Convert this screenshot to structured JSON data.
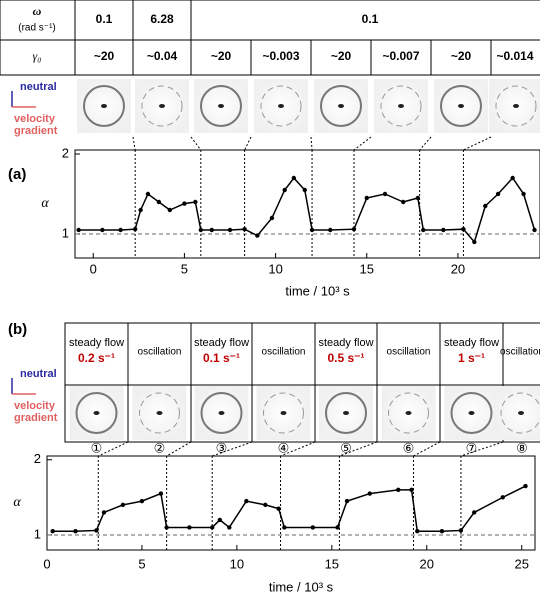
{
  "panel_a": {
    "label": "(a)",
    "omega_label": "ω",
    "omega_unit": "(rad s⁻¹)",
    "omega_values": [
      "0.1",
      "6.28",
      "0.1"
    ],
    "gamma_label": "γ₀",
    "gamma_values": [
      "~20",
      "~0.04",
      "~20",
      "~0.003",
      "~20",
      "~0.007",
      "~20",
      "~0.014"
    ],
    "neutral": "neutral",
    "velocity_gradient": [
      "velocity",
      "gradient"
    ]
  },
  "panel_b": {
    "label": "(b)",
    "conditions": [
      {
        "mode": "steady flow",
        "rate": "0.2 s⁻¹"
      },
      {
        "mode": "oscillation"
      },
      {
        "mode": "steady flow",
        "rate": "0.1 s⁻¹"
      },
      {
        "mode": "oscillation"
      },
      {
        "mode": "steady flow",
        "rate": "0.5 s⁻¹"
      },
      {
        "mode": "oscillation"
      },
      {
        "mode": "steady flow",
        "rate": "1 s⁻¹"
      },
      {
        "mode": "oscillation"
      }
    ],
    "steps": [
      "①",
      "②",
      "③",
      "④",
      "⑤",
      "⑥",
      "⑦",
      "⑧"
    ],
    "neutral": "neutral",
    "velocity_gradient": [
      "velocity",
      "gradient"
    ]
  },
  "chart_data": [
    {
      "type": "line",
      "xlabel": "time / 10³ s",
      "ylabel": "α",
      "x": [
        -0.8,
        0.5,
        1.5,
        2.3,
        2.6,
        3.0,
        3.6,
        4.2,
        5.0,
        5.6,
        5.9,
        6.5,
        7.5,
        8.3,
        9.0,
        9.8,
        10.5,
        11.0,
        11.6,
        12.0,
        13.0,
        14.3,
        15.0,
        16.0,
        17.0,
        17.8,
        18.1,
        19.2,
        20.3,
        20.9,
        21.5,
        22.2,
        23.0,
        23.6,
        24.2
      ],
      "series": [
        {
          "color": "#000000",
          "values": [
            1.05,
            1.05,
            1.05,
            1.06,
            1.3,
            1.5,
            1.4,
            1.3,
            1.38,
            1.4,
            1.05,
            1.05,
            1.05,
            1.06,
            0.98,
            1.2,
            1.55,
            1.7,
            1.55,
            1.05,
            1.05,
            1.06,
            1.45,
            1.5,
            1.4,
            1.45,
            1.05,
            1.05,
            1.06,
            0.9,
            1.35,
            1.5,
            1.7,
            1.5,
            1.05
          ]
        }
      ],
      "xlim": [
        -1,
        24.5
      ],
      "ylim": [
        0.7,
        2.05
      ],
      "xticks": [
        0,
        5,
        10,
        15,
        20
      ],
      "yticks": [
        1,
        2
      ],
      "boundaries": [
        2.3,
        5.9,
        8.3,
        12,
        14.3,
        17.9,
        20.3
      ],
      "reference_line": 1
    },
    {
      "type": "line",
      "xlabel": "time / 10³ s",
      "ylabel": "α",
      "x": [
        0.3,
        1.5,
        2.6,
        3.0,
        4.0,
        5.0,
        6.0,
        6.3,
        7.5,
        8.7,
        9.1,
        9.6,
        10.5,
        11.5,
        12.2,
        12.5,
        14.0,
        15.3,
        15.8,
        17.0,
        18.5,
        19.2,
        19.5,
        20.8,
        21.8,
        22.5,
        24.0,
        25.2
      ],
      "series": [
        {
          "color": "#000000",
          "values": [
            1.05,
            1.05,
            1.06,
            1.3,
            1.4,
            1.45,
            1.55,
            1.1,
            1.1,
            1.1,
            1.2,
            1.1,
            1.45,
            1.4,
            1.35,
            1.1,
            1.1,
            1.1,
            1.45,
            1.55,
            1.6,
            1.6,
            1.05,
            1.05,
            1.06,
            1.3,
            1.5,
            1.65
          ]
        }
      ],
      "xlim": [
        0,
        25.7
      ],
      "ylim": [
        0.8,
        2.05
      ],
      "xticks": [
        0,
        5,
        10,
        15,
        20,
        25
      ],
      "yticks": [
        1,
        2
      ],
      "boundaries": [
        2.7,
        6.3,
        8.7,
        12.3,
        15.4,
        19.3,
        21.8
      ],
      "reference_line": 1
    }
  ]
}
